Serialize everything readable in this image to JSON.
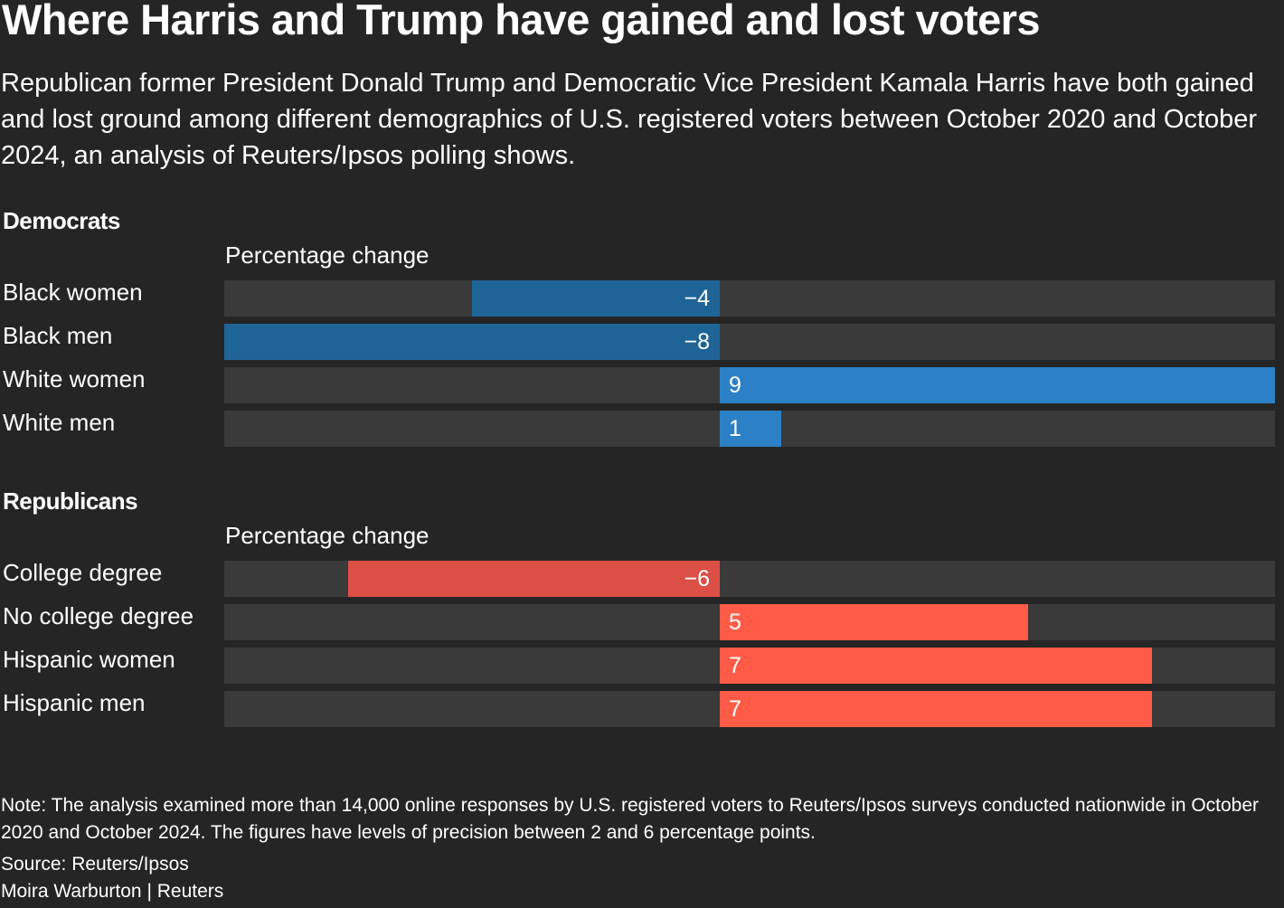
{
  "title": "Where Harris and Trump have gained and lost voters",
  "subtitle": "Republican former President Donald Trump and Democratic Vice President Kamala Harris have both gained and lost ground among different demographics of U.S. registered voters between October 2020 and October 2024, an analysis of Reuters/Ipsos polling shows.",
  "note": "Note: The analysis examined more than 14,000 online responses by U.S. registered voters to Reuters/Ipsos surveys conducted nationwide in October 2020 and October 2024. The figures have levels of precision between 2 and 6 percentage points.",
  "source": "Source: Reuters/Ipsos",
  "credit": "Moira Warburton | Reuters",
  "colors": {
    "background": "#252525",
    "track": "#3a3a3a",
    "dem_negative": "#1f6497",
    "dem_positive": "#2b80c6",
    "rep_negative": "#dc4f46",
    "rep_positive": "#ff5b47"
  },
  "chart_data": [
    {
      "type": "bar",
      "orientation": "horizontal",
      "title": "Democrats",
      "xlabel": "Percentage change",
      "categories": [
        "Black women",
        "Black men",
        "White women",
        "White men"
      ],
      "values": [
        -4,
        -8,
        9,
        1
      ],
      "value_labels": [
        "−4",
        "−8",
        "9",
        "1"
      ],
      "xlim": [
        -8,
        9
      ],
      "grid": false
    },
    {
      "type": "bar",
      "orientation": "horizontal",
      "title": "Republicans",
      "xlabel": "Percentage change",
      "categories": [
        "College degree",
        "No college degree",
        "Hispanic women",
        "Hispanic men"
      ],
      "values": [
        -6,
        5,
        7,
        7
      ],
      "value_labels": [
        "−6",
        "5",
        "7",
        "7"
      ],
      "xlim": [
        -8,
        9
      ],
      "grid": false
    }
  ]
}
